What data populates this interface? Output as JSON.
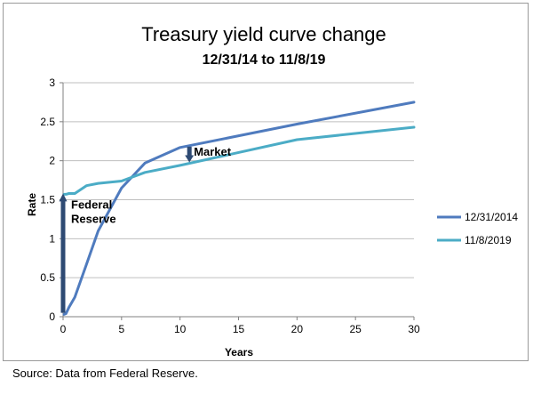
{
  "chart_data": {
    "type": "line",
    "title": "Treasury yield curve change",
    "subtitle": "12/31/14 to 11/8/19",
    "xlabel": "Years",
    "ylabel": "Rate",
    "xlim": [
      0,
      30
    ],
    "ylim": [
      0,
      3
    ],
    "x_ticks": [
      "0",
      "5",
      "10",
      "15",
      "20",
      "25",
      "30"
    ],
    "y_ticks": [
      "0",
      "0.5",
      "1",
      "1.5",
      "2",
      "2.5",
      "3"
    ],
    "grid": "horizontal",
    "legend_position": "right",
    "series": [
      {
        "name": "12/31/2014",
        "color": "#4F7BBE",
        "x": [
          0.083,
          0.25,
          0.5,
          1,
          2,
          3,
          5,
          7,
          10,
          20,
          30
        ],
        "y": [
          0.03,
          0.04,
          0.12,
          0.25,
          0.67,
          1.1,
          1.65,
          1.97,
          2.17,
          2.47,
          2.75
        ]
      },
      {
        "name": "11/8/2019",
        "color": "#4BACC6",
        "x": [
          0.083,
          0.25,
          0.5,
          1,
          2,
          3,
          5,
          7,
          10,
          20,
          30
        ],
        "y": [
          1.57,
          1.57,
          1.58,
          1.58,
          1.68,
          1.71,
          1.74,
          1.85,
          1.94,
          2.27,
          2.43
        ]
      }
    ],
    "annotations": [
      {
        "text": "Federal Reserve",
        "lines": [
          "Federal",
          "Reserve"
        ],
        "arrow_x": 0,
        "arrow_from": 0.05,
        "arrow_to": 1.57
      },
      {
        "text": "Market",
        "arrow_x": 10.8,
        "arrow_from": 2.18,
        "arrow_to": 1.99
      }
    ]
  },
  "source_note": "Source:  Data from Federal Reserve."
}
